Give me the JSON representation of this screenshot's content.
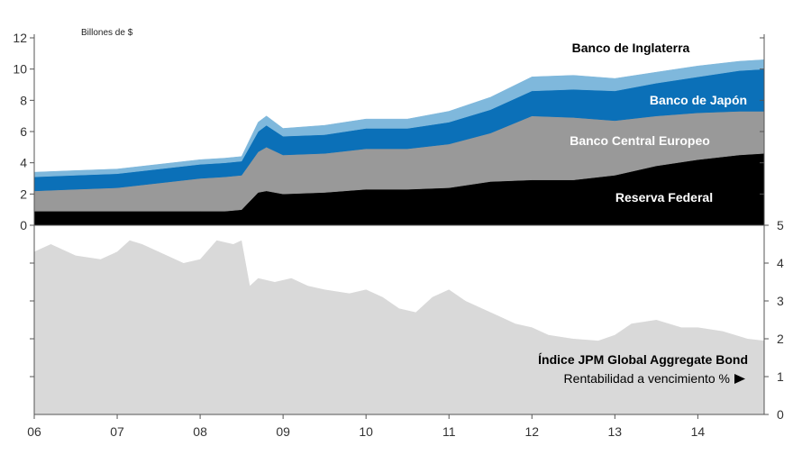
{
  "chart_data": [
    {
      "type": "area",
      "stacked": true,
      "unit_label": "Billones de $",
      "x": [
        2006.0,
        2006.5,
        2007.0,
        2007.5,
        2008.0,
        2008.3,
        2008.5,
        2008.7,
        2008.8,
        2009.0,
        2009.5,
        2010.0,
        2010.5,
        2011.0,
        2011.5,
        2012.0,
        2012.5,
        2013.0,
        2013.5,
        2014.0,
        2014.5,
        2014.8
      ],
      "series": [
        {
          "name": "Reserva Federal",
          "color": "#000000",
          "values": [
            0.9,
            0.9,
            0.9,
            0.9,
            0.9,
            0.9,
            1.0,
            2.1,
            2.2,
            2.0,
            2.1,
            2.3,
            2.3,
            2.4,
            2.8,
            2.9,
            2.9,
            3.2,
            3.8,
            4.2,
            4.5,
            4.6
          ]
        },
        {
          "name": "Banco Central Europeo",
          "color": "#999999",
          "values": [
            1.3,
            1.4,
            1.5,
            1.8,
            2.1,
            2.2,
            2.2,
            2.6,
            2.8,
            2.5,
            2.5,
            2.6,
            2.6,
            2.8,
            3.1,
            4.1,
            4.0,
            3.5,
            3.2,
            3.0,
            2.8,
            2.7
          ]
        },
        {
          "name": "Banco de Japón",
          "color": "#0b70b8",
          "values": [
            0.9,
            0.9,
            0.9,
            0.9,
            0.9,
            0.9,
            0.9,
            1.3,
            1.4,
            1.2,
            1.2,
            1.3,
            1.3,
            1.4,
            1.5,
            1.6,
            1.8,
            1.9,
            2.1,
            2.3,
            2.6,
            2.7
          ]
        },
        {
          "name": "Banco de Inglaterra",
          "color": "#7fb8dc",
          "values": [
            0.3,
            0.3,
            0.3,
            0.3,
            0.3,
            0.3,
            0.3,
            0.6,
            0.6,
            0.5,
            0.6,
            0.6,
            0.6,
            0.7,
            0.8,
            0.9,
            0.9,
            0.8,
            0.7,
            0.7,
            0.6,
            0.6
          ]
        }
      ],
      "ylim": [
        0,
        12
      ],
      "yticks": [
        0,
        2,
        4,
        6,
        8,
        10,
        12
      ]
    },
    {
      "type": "area",
      "name": "Índice JPM Global Aggregate Bond",
      "sublabel": "Rentabilidad a vencimiento %",
      "color": "#d9d9d9",
      "y_axis_side": "right",
      "x": [
        2006.0,
        2006.2,
        2006.5,
        2006.8,
        2007.0,
        2007.15,
        2007.3,
        2007.5,
        2007.8,
        2008.0,
        2008.2,
        2008.4,
        2008.5,
        2008.6,
        2008.7,
        2008.9,
        2009.1,
        2009.3,
        2009.5,
        2009.8,
        2010.0,
        2010.2,
        2010.4,
        2010.6,
        2010.8,
        2011.0,
        2011.2,
        2011.4,
        2011.6,
        2011.8,
        2012.0,
        2012.2,
        2012.5,
        2012.8,
        2013.0,
        2013.2,
        2013.5,
        2013.8,
        2014.0,
        2014.3,
        2014.6,
        2014.8
      ],
      "values": [
        4.3,
        4.5,
        4.2,
        4.1,
        4.3,
        4.6,
        4.5,
        4.3,
        4.0,
        4.1,
        4.6,
        4.5,
        4.6,
        3.4,
        3.6,
        3.5,
        3.6,
        3.4,
        3.3,
        3.2,
        3.3,
        3.1,
        2.8,
        2.7,
        3.1,
        3.3,
        3.0,
        2.8,
        2.6,
        2.4,
        2.3,
        2.1,
        2.0,
        1.95,
        2.1,
        2.4,
        2.5,
        2.3,
        2.3,
        2.2,
        2.0,
        1.95
      ],
      "ylim": [
        0,
        5
      ],
      "yticks": [
        0,
        1,
        2,
        3,
        4,
        5
      ]
    }
  ],
  "x_axis": {
    "ticks": [
      "06",
      "07",
      "08",
      "09",
      "10",
      "11",
      "12",
      "13",
      "14"
    ]
  }
}
